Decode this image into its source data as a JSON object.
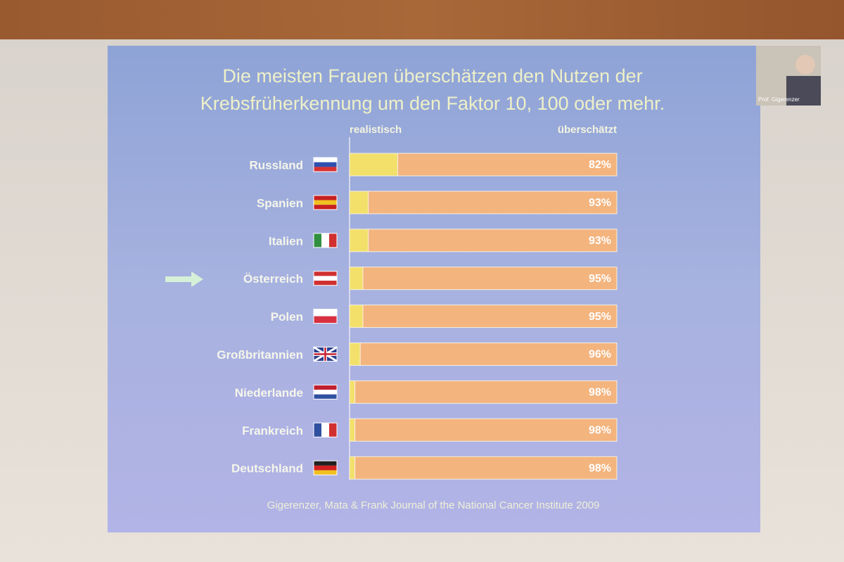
{
  "chart_data": {
    "type": "stacked-bar-horizontal",
    "title": [
      "Die meisten Frauen überschätzen den Nutzen der",
      "Krebsfrüherkennung um den Faktor 10, 100 oder mehr."
    ],
    "categories": [
      "Russland",
      "Spanien",
      "Italien",
      "Österreich",
      "Polen",
      "Großbritannien",
      "Niederlande",
      "Frankreich",
      "Deutschland"
    ],
    "series": [
      {
        "name": "realistisch",
        "color": "#f2e06a",
        "values": [
          18,
          7,
          7,
          5,
          5,
          4,
          2,
          2,
          2
        ]
      },
      {
        "name": "überschätzt",
        "color": "#f4b47e",
        "values": [
          82,
          93,
          93,
          95,
          95,
          96,
          98,
          98,
          98
        ],
        "value_labels": [
          "82%",
          "93%",
          "93%",
          "95%",
          "95%",
          "96%",
          "98%",
          "98%",
          "98%"
        ]
      }
    ],
    "xlim": [
      0,
      100
    ],
    "source": "Gigerenzer, Mata & Frank Journal of the National Cancer Institute 2009",
    "webcam_label": "Prof. Gigerenzer"
  }
}
